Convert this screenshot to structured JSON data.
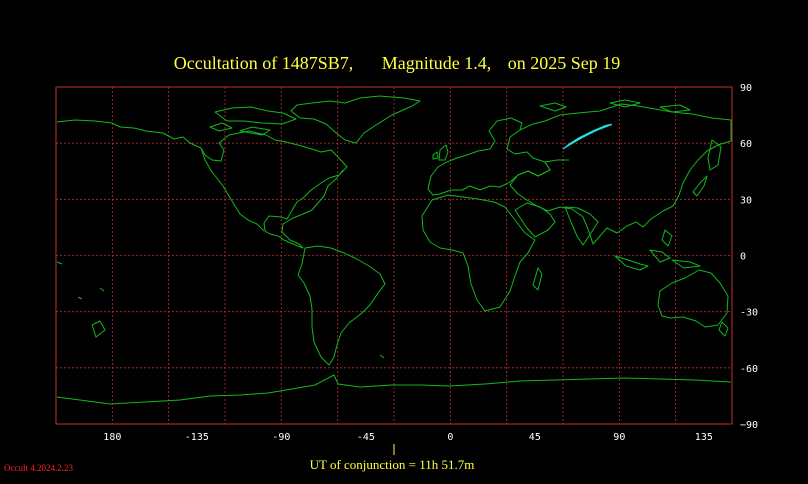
{
  "title": {
    "occultation_of": "Occultation  of  1487SB7,",
    "magnitude": "Magnitude 1.4,",
    "date": "on  2025 Sep 19"
  },
  "map": {
    "projection": "equirectangular",
    "lon_range": [
      -210,
      150
    ],
    "lat_range": [
      -90,
      90
    ],
    "grid_lon_step": 30,
    "grid_lat_step": 30,
    "colors": {
      "background": "#000000",
      "grid": "#c03030",
      "coastline": "#12b81e",
      "occultation_path": "#20e0e0",
      "text": "#ffff40"
    },
    "lon_tick_labels": [
      {
        "lon": -180,
        "label": "180"
      },
      {
        "lon": -135,
        "label": "-135"
      },
      {
        "lon": -90,
        "label": "-90"
      },
      {
        "lon": -45,
        "label": "-45"
      },
      {
        "lon": 0,
        "label": "0"
      },
      {
        "lon": 45,
        "label": "45"
      },
      {
        "lon": 90,
        "label": "90"
      },
      {
        "lon": 135,
        "label": "135"
      }
    ],
    "lat_tick_labels": [
      {
        "lat": 90,
        "label": "90"
      },
      {
        "lat": 60,
        "label": "60"
      },
      {
        "lat": 30,
        "label": "30"
      },
      {
        "lat": 0,
        "label": "0"
      },
      {
        "lat": -30,
        "label": "-30"
      },
      {
        "lat": -60,
        "label": "-60"
      },
      {
        "lat": -90,
        "label": "−90"
      }
    ],
    "occultation_path": [
      [
        60,
        57
      ],
      [
        64,
        59.5
      ],
      [
        70,
        63
      ],
      [
        78,
        67
      ],
      [
        86,
        70
      ],
      [
        83,
        69.5
      ],
      [
        76,
        66.5
      ],
      [
        68,
        62.5
      ],
      [
        62,
        58.5
      ]
    ]
  },
  "footer": {
    "ut_conjunction": "UT of conjunction = 11h 51.7m",
    "version": "Occult 4.2024.2.23"
  }
}
